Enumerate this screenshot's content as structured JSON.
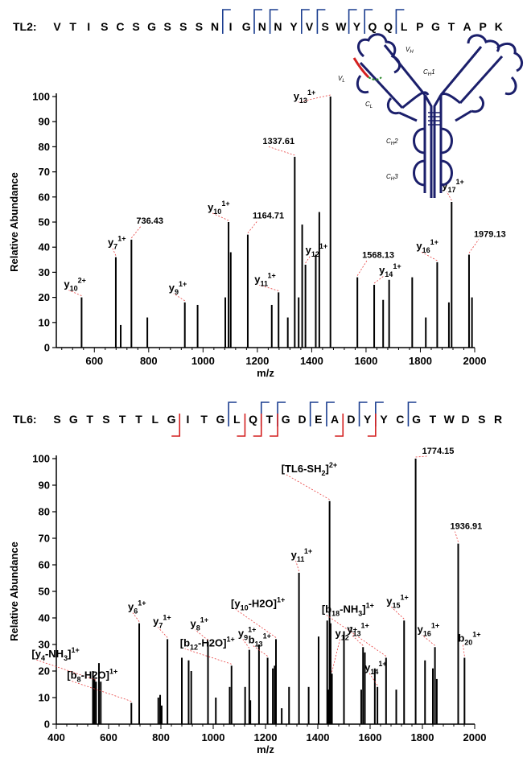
{
  "chart_data": [
    {
      "type": "bar",
      "subtype": "mass-spectrum",
      "peptide_label": "TL2:",
      "sequence": [
        "V",
        "T",
        "I",
        "S",
        "C",
        "S",
        "G",
        "S",
        "S",
        "S",
        "N",
        "I",
        "G",
        "N",
        "N",
        "Y",
        "V",
        "S",
        "W",
        "Y",
        "Q",
        "Q",
        "L",
        "P",
        "G",
        "T",
        "A",
        "P",
        "K"
      ],
      "y_fragment_after": [
        11,
        13,
        14,
        16,
        17,
        19,
        20,
        22
      ],
      "b_fragment_after": [],
      "xlabel": "m/z",
      "ylabel": "Relative Abundance",
      "xlim": [
        460,
        2000
      ],
      "ylim": [
        0,
        100
      ],
      "xticks": [
        600,
        800,
        1000,
        1200,
        1400,
        1600,
        1800,
        2000
      ],
      "yticks": [
        0,
        10,
        20,
        30,
        40,
        50,
        60,
        70,
        80,
        90,
        100
      ],
      "peaks": [
        {
          "mz": 553,
          "int": 20
        },
        {
          "mz": 679,
          "int": 36
        },
        {
          "mz": 697,
          "int": 9
        },
        {
          "mz": 736.43,
          "int": 43
        },
        {
          "mz": 795,
          "int": 12
        },
        {
          "mz": 933,
          "int": 18
        },
        {
          "mz": 980,
          "int": 17
        },
        {
          "mz": 1082,
          "int": 20
        },
        {
          "mz": 1094,
          "int": 50
        },
        {
          "mz": 1102,
          "int": 38
        },
        {
          "mz": 1164.71,
          "int": 45
        },
        {
          "mz": 1253,
          "int": 17
        },
        {
          "mz": 1278,
          "int": 22
        },
        {
          "mz": 1312,
          "int": 12
        },
        {
          "mz": 1337.61,
          "int": 76
        },
        {
          "mz": 1352,
          "int": 20
        },
        {
          "mz": 1365,
          "int": 49
        },
        {
          "mz": 1377,
          "int": 33
        },
        {
          "mz": 1415,
          "int": 37
        },
        {
          "mz": 1428,
          "int": 54
        },
        {
          "mz": 1469,
          "int": 100
        },
        {
          "mz": 1568.13,
          "int": 28
        },
        {
          "mz": 1630,
          "int": 25
        },
        {
          "mz": 1663,
          "int": 19
        },
        {
          "mz": 1685,
          "int": 27
        },
        {
          "mz": 1770,
          "int": 28
        },
        {
          "mz": 1820,
          "int": 12
        },
        {
          "mz": 1862,
          "int": 34
        },
        {
          "mz": 1905,
          "int": 18
        },
        {
          "mz": 1915,
          "int": 58
        },
        {
          "mz": 1979.13,
          "int": 37
        },
        {
          "mz": 1990,
          "int": 20
        }
      ],
      "annotations": [
        {
          "ion": "y",
          "sub": "10",
          "sup": "2+",
          "mz": 553,
          "int": 20
        },
        {
          "ion": "y",
          "sub": "7",
          "sup": "1+",
          "mz": 679,
          "int": 36
        },
        {
          "value": "736.43",
          "mz": 736.43,
          "int": 43
        },
        {
          "ion": "y",
          "sub": "9",
          "sup": "1+",
          "mz": 933,
          "int": 18
        },
        {
          "ion": "y",
          "sub": "10",
          "sup": "1+",
          "mz": 1094,
          "int": 50
        },
        {
          "value": "1164.71",
          "mz": 1164.71,
          "int": 45
        },
        {
          "ion": "y",
          "sub": "11",
          "sup": "1+",
          "mz": 1278,
          "int": 22
        },
        {
          "value": "1337.61",
          "mz": 1337.61,
          "int": 76
        },
        {
          "ion": "y",
          "sub": "12",
          "sup": "1+",
          "mz": 1377,
          "int": 33
        },
        {
          "ion": "y",
          "sub": "13",
          "sup": "1+",
          "mz": 1469,
          "int": 100
        },
        {
          "value": "1568.13",
          "mz": 1568.13,
          "int": 28
        },
        {
          "ion": "y",
          "sub": "14",
          "sup": "1+",
          "mz": 1630,
          "int": 25
        },
        {
          "ion": "y",
          "sub": "16",
          "sup": "1+",
          "mz": 1862,
          "int": 34
        },
        {
          "ion": "y",
          "sub": "17",
          "sup": "1+",
          "mz": 1915,
          "int": 58
        },
        {
          "value": "1979.13",
          "mz": 1979.13,
          "int": 37
        }
      ]
    },
    {
      "type": "bar",
      "subtype": "mass-spectrum",
      "peptide_label": "TL6:",
      "sequence": [
        "S",
        "G",
        "T",
        "S",
        "T",
        "T",
        "L",
        "G",
        "I",
        "T",
        "G",
        "L",
        "Q",
        "T",
        "G",
        "D",
        "E",
        "A",
        "D",
        "Y",
        "Y",
        "C",
        "G",
        "T",
        "W",
        "D",
        "S",
        "R"
      ],
      "y_fragment_after": [
        11,
        13,
        14,
        16,
        17,
        19,
        20,
        22
      ],
      "b_fragment_after": [
        7,
        11,
        12,
        13,
        17,
        19
      ],
      "xlabel": "m/z",
      "ylabel": "Relative Abundance",
      "xlim": [
        400,
        2000
      ],
      "ylim": [
        0,
        100
      ],
      "xticks": [
        400,
        600,
        800,
        1000,
        1200,
        1400,
        1600,
        1800,
        2000
      ],
      "yticks": [
        0,
        10,
        20,
        30,
        40,
        50,
        60,
        70,
        80,
        90,
        100
      ],
      "peaks": [
        {
          "mz": 540,
          "int": 20
        },
        {
          "mz": 546,
          "int": 17
        },
        {
          "mz": 552,
          "int": 16
        },
        {
          "mz": 563,
          "int": 23
        },
        {
          "mz": 570,
          "int": 16
        },
        {
          "mz": 687,
          "int": 8
        },
        {
          "mz": 717,
          "int": 38
        },
        {
          "mz": 790,
          "int": 10
        },
        {
          "mz": 797,
          "int": 11
        },
        {
          "mz": 803,
          "int": 7
        },
        {
          "mz": 825,
          "int": 32
        },
        {
          "mz": 880,
          "int": 25
        },
        {
          "mz": 906,
          "int": 24
        },
        {
          "mz": 916,
          "int": 20
        },
        {
          "mz": 980,
          "int": 31
        },
        {
          "mz": 1010,
          "int": 10
        },
        {
          "mz": 1063,
          "int": 14
        },
        {
          "mz": 1070,
          "int": 22
        },
        {
          "mz": 1122,
          "int": 14
        },
        {
          "mz": 1138,
          "int": 28
        },
        {
          "mz": 1142,
          "int": 9
        },
        {
          "mz": 1175,
          "int": 30
        },
        {
          "mz": 1208,
          "int": 25
        },
        {
          "mz": 1228,
          "int": 21
        },
        {
          "mz": 1235,
          "int": 22
        },
        {
          "mz": 1240,
          "int": 32
        },
        {
          "mz": 1262,
          "int": 6
        },
        {
          "mz": 1290,
          "int": 14
        },
        {
          "mz": 1328,
          "int": 57
        },
        {
          "mz": 1365,
          "int": 14
        },
        {
          "mz": 1403,
          "int": 33
        },
        {
          "mz": 1436,
          "int": 39
        },
        {
          "mz": 1440,
          "int": 13
        },
        {
          "mz": 1445,
          "int": 84
        },
        {
          "mz": 1449,
          "int": 38
        },
        {
          "mz": 1454,
          "int": 19
        },
        {
          "mz": 1500,
          "int": 35
        },
        {
          "mz": 1566,
          "int": 13
        },
        {
          "mz": 1573,
          "int": 29
        },
        {
          "mz": 1580,
          "int": 27
        },
        {
          "mz": 1618,
          "int": 21
        },
        {
          "mz": 1628,
          "int": 14
        },
        {
          "mz": 1661,
          "int": 25
        },
        {
          "mz": 1700,
          "int": 13
        },
        {
          "mz": 1730,
          "int": 39
        },
        {
          "mz": 1774.15,
          "int": 100
        },
        {
          "mz": 1810,
          "int": 24
        },
        {
          "mz": 1840,
          "int": 21
        },
        {
          "mz": 1848,
          "int": 29
        },
        {
          "mz": 1855,
          "int": 17
        },
        {
          "mz": 1936.91,
          "int": 68
        },
        {
          "mz": 1961,
          "int": 25
        }
      ],
      "annotations": [
        {
          "ion": "[y",
          "sub": "4",
          "mid": "-NH",
          "sub2": "3",
          "close": "]",
          "sup": "1+",
          "mz": 552,
          "int": 16
        },
        {
          "ion": "[b",
          "sub": "8",
          "mid": "-H2O]",
          "sup": "1+",
          "mz": 687,
          "int": 8
        },
        {
          "ion": "y",
          "sub": "6",
          "sup": "1+",
          "mz": 717,
          "int": 38
        },
        {
          "ion": "y",
          "sub": "7",
          "sup": "1+",
          "mz": 825,
          "int": 32
        },
        {
          "ion": "[b",
          "sub": "12",
          "mid": "-H2O]",
          "sup": "1+",
          "mz": 1070,
          "int": 22
        },
        {
          "ion": "y",
          "sub": "8",
          "sup": "1+",
          "mz": 980,
          "int": 31
        },
        {
          "ion": "y",
          "sub": "9",
          "sup": "1+",
          "mz": 1138,
          "int": 28
        },
        {
          "ion": "b",
          "sub": "13",
          "sup": "1+",
          "mz": 1208,
          "int": 25
        },
        {
          "ion": "[y",
          "sub": "10",
          "mid": "-H2O]",
          "sup": "1+",
          "mz": 1240,
          "int": 32
        },
        {
          "ion": "y",
          "sub": "11",
          "sup": "1+",
          "mz": 1328,
          "int": 57
        },
        {
          "ion": "[TL6-SH",
          "sub": "2",
          "mid": "]",
          "sup": "2+",
          "mz": 1445,
          "int": 84
        },
        {
          "ion": "y",
          "sub": "12",
          "sup": "1+",
          "mz": 1454,
          "int": 19
        },
        {
          "ion": "[b",
          "sub": "18",
          "mid": "-NH",
          "sub2": "3",
          "close": "]",
          "sup": "1+",
          "mz": 1661,
          "int": 25
        },
        {
          "ion": "y",
          "sub": "13",
          "sup": "1+",
          "mz": 1573,
          "int": 29
        },
        {
          "ion": "y",
          "sub": "14",
          "sup": "1+",
          "mz": 1628,
          "int": 14
        },
        {
          "ion": "y",
          "sub": "15",
          "sup": "1+",
          "mz": 1730,
          "int": 39
        },
        {
          "value": "1774.15",
          "mz": 1774.15,
          "int": 100
        },
        {
          "ion": "y",
          "sub": "16",
          "sup": "1+",
          "mz": 1848,
          "int": 29
        },
        {
          "value": "1936.91",
          "mz": 1936.91,
          "int": 68
        },
        {
          "ion": "b",
          "sub": "20",
          "sup": "1+",
          "mz": 1961,
          "int": 25
        }
      ]
    }
  ],
  "antibody_diagram": {
    "labels": [
      {
        "base": "V",
        "sub": "H"
      },
      {
        "base": "C",
        "sub": "H",
        "tail": "1"
      },
      {
        "base": "V",
        "sub": "L"
      },
      {
        "base": "C",
        "sub": "L"
      },
      {
        "base": "C",
        "sub": "H",
        "tail": "2"
      },
      {
        "base": "C",
        "sub": "H",
        "tail": "3"
      }
    ]
  },
  "colors": {
    "bracket_y": "#1a3d8f",
    "bracket_b": "#d42020",
    "leader": "#e84040",
    "antibody": "#1b1f6b",
    "highlight": "#d42020",
    "highlight2": "#2e8b2e"
  }
}
